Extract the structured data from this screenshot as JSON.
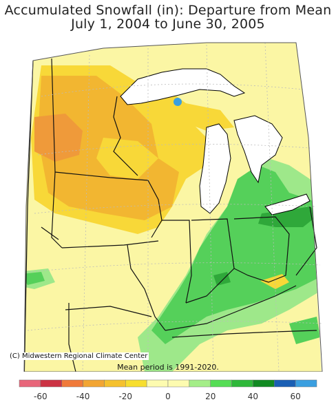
{
  "title": {
    "line1": "Accumulated Snowfall (in): Departure from Mean",
    "line2": "July 1, 2004 to June 30, 2005"
  },
  "credit": "(C) Midwestern Regional Climate Center",
  "mean_period": "Mean period is 1991-2020.",
  "legend": {
    "colors": [
      "#e8667a",
      "#cc3344",
      "#f07a3a",
      "#f2a533",
      "#f5c12e",
      "#f7de2e",
      "#fdfbb0",
      "#fdfbb0",
      "#a4ee88",
      "#55dd55",
      "#2fb83a",
      "#118a22",
      "#1a5fb4",
      "#3a9fe0"
    ],
    "ticks": [
      "-60",
      "-40",
      "-20",
      "0",
      "20",
      "40",
      "60"
    ]
  },
  "colors": {
    "light_yellow": "#fbf6a4",
    "yellow": "#f8d838",
    "gold": "#f2b631",
    "orange": "#ef9a3a",
    "light_green": "#9ee88a",
    "green": "#55d05a",
    "dark_green": "#2fa83a",
    "blue": "#3a9fe0",
    "water": "#ffffff"
  }
}
